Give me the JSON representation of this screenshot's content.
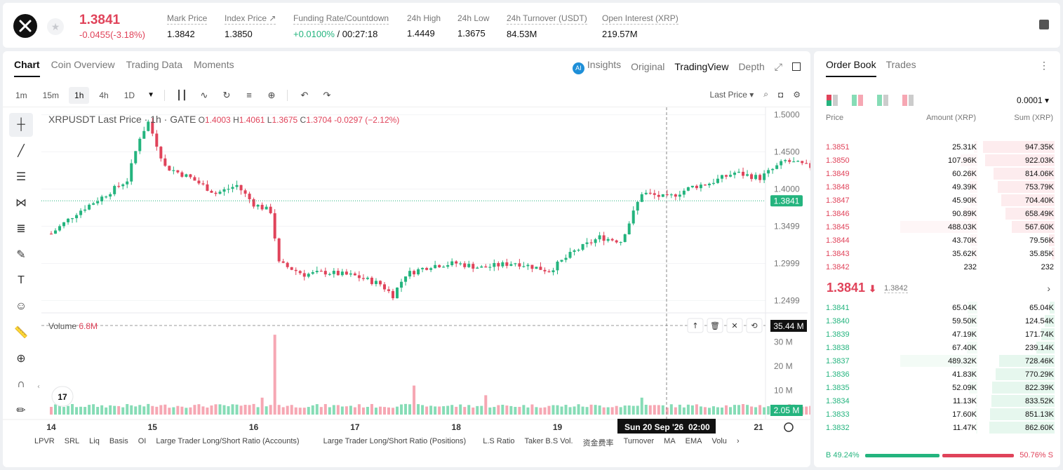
{
  "header": {
    "price": "1.3841",
    "change": "-0.0455(-3.18%)",
    "stats": [
      {
        "label": "Mark Price",
        "value": "1.3842"
      },
      {
        "label": "Index Price ↗",
        "value": "1.3850"
      },
      {
        "label": "Funding Rate/Countdown",
        "value_green": "+0.0100%",
        "value": "/ 00:27:18"
      },
      {
        "label": "24h High",
        "value": "1.4449"
      },
      {
        "label": "24h Low",
        "value": "1.3675"
      },
      {
        "label": "24h Turnover (USDT)",
        "value": "84.53M"
      },
      {
        "label": "Open Interest (XRP)",
        "value": "219.57M"
      }
    ]
  },
  "chart_tabs": [
    "Chart",
    "Coin Overview",
    "Trading Data",
    "Moments"
  ],
  "view_tabs": {
    "insights": "Insights",
    "original": "Original",
    "tradingview": "TradingView",
    "depth": "Depth"
  },
  "timeframes": [
    "1m",
    "15m",
    "1h",
    "4h",
    "1D"
  ],
  "toolbar": {
    "last_price": "Last Price ▾"
  },
  "legend": {
    "symbol": "XRPUSDT Last Price · 1h · GATE",
    "o_label": "O",
    "o": "1.4003",
    "h_label": "H",
    "h": "1.4061",
    "l_label": "L",
    "l": "1.3675",
    "c_label": "C",
    "c": "1.3704",
    "change": "-0.0297 (−2.12%)"
  },
  "volume_legend": {
    "label": "Volume",
    "value": "6.8M"
  },
  "price_axis": [
    "1.5000",
    "1.4500",
    "1.4000",
    "1.3499",
    "1.2999",
    "1.2499"
  ],
  "price_marker": "1.3841",
  "volume_axis": [
    "30 M",
    "20 M",
    "10 M"
  ],
  "volume_marker": "35.44 M",
  "volume_marker_low": "2.05 M",
  "date_axis": [
    "14",
    "15",
    "16",
    "17",
    "18",
    "19",
    "21"
  ],
  "crosshair_date": "Sun 20 Sep '26",
  "crosshair_time": "02:00",
  "indicators": [
    "LPVR",
    "SRL",
    "Liq",
    "Basis",
    "OI",
    "Large Trader Long/Short Ratio (Accounts)",
    "Large Trader Long/Short Ratio (Positions)",
    "L.S Ratio",
    "Taker B.S Vol.",
    "资金费率",
    "Turnover",
    "MA",
    "EMA",
    "Volu"
  ],
  "chart_data": {
    "type": "candlestick",
    "series": [
      {
        "name": "XRPUSDT"
      }
    ],
    "x_labels": [
      "14",
      "15",
      "16",
      "17",
      "18",
      "19",
      "20",
      "21"
    ],
    "ylim": [
      1.2399,
      1.51
    ],
    "volume_ylim": [
      0,
      40
    ],
    "candles_per_day": 24,
    "keypoints": [
      [
        0,
        1.34
      ],
      [
        6,
        1.368
      ],
      [
        12,
        1.389
      ],
      [
        18,
        1.412
      ],
      [
        21,
        1.47
      ],
      [
        23,
        1.49
      ],
      [
        27,
        1.43
      ],
      [
        33,
        1.415
      ],
      [
        39,
        1.394
      ],
      [
        44,
        1.405
      ],
      [
        48,
        1.38
      ],
      [
        52,
        1.37
      ],
      [
        54,
        1.3
      ],
      [
        60,
        1.285
      ],
      [
        65,
        1.288
      ],
      [
        72,
        1.283
      ],
      [
        78,
        1.272
      ],
      [
        81,
        1.257
      ],
      [
        84,
        1.285
      ],
      [
        90,
        1.297
      ],
      [
        96,
        1.3
      ],
      [
        102,
        1.294
      ],
      [
        110,
        1.301
      ],
      [
        118,
        1.29
      ],
      [
        124,
        1.316
      ],
      [
        130,
        1.335
      ],
      [
        135,
        1.33
      ],
      [
        137,
        1.355
      ],
      [
        140,
        1.395
      ],
      [
        146,
        1.388
      ],
      [
        152,
        1.403
      ],
      [
        156,
        1.408
      ],
      [
        162,
        1.422
      ],
      [
        168,
        1.415
      ],
      [
        174,
        1.438
      ],
      [
        180,
        1.43
      ],
      [
        185,
        1.425
      ],
      [
        188,
        1.395
      ],
      [
        190,
        1.38
      ],
      [
        193,
        1.382
      ],
      [
        198,
        1.383
      ],
      [
        201,
        1.384
      ]
    ],
    "volume_spikes": [
      {
        "i": 53,
        "v": 33
      },
      {
        "i": 50,
        "v": 7
      },
      {
        "i": 54,
        "v": 4
      },
      {
        "i": 86,
        "v": 12
      },
      {
        "i": 103,
        "v": 8
      },
      {
        "i": 140,
        "v": 7
      },
      {
        "i": 189,
        "v": 5
      }
    ],
    "volume_base": 2.8
  },
  "orderbook": {
    "tabs": [
      "Order Book",
      "Trades"
    ],
    "precision": "0.0001 ▾",
    "headers": {
      "price": "Price",
      "amount": "Amount (XRP)",
      "sum": "Sum (XRP)"
    },
    "asks": [
      {
        "price": "1.3851",
        "amount": "25.31K",
        "sum": "947.35K",
        "amt_pct": 0.05,
        "sum_pct": 0.97
      },
      {
        "price": "1.3850",
        "amount": "107.96K",
        "sum": "922.03K",
        "amt_pct": 0.22,
        "sum_pct": 0.94
      },
      {
        "price": "1.3849",
        "amount": "60.26K",
        "sum": "814.06K",
        "amt_pct": 0.12,
        "sum_pct": 0.83
      },
      {
        "price": "1.3848",
        "amount": "49.39K",
        "sum": "753.79K",
        "amt_pct": 0.1,
        "sum_pct": 0.77
      },
      {
        "price": "1.3847",
        "amount": "45.90K",
        "sum": "704.40K",
        "amt_pct": 0.09,
        "sum_pct": 0.72
      },
      {
        "price": "1.3846",
        "amount": "90.89K",
        "sum": "658.49K",
        "amt_pct": 0.18,
        "sum_pct": 0.67
      },
      {
        "price": "1.3845",
        "amount": "488.03K",
        "sum": "567.60K",
        "amt_pct": 1.0,
        "sum_pct": 0.58
      },
      {
        "price": "1.3844",
        "amount": "43.70K",
        "sum": "79.56K",
        "amt_pct": 0.09,
        "sum_pct": 0.08
      },
      {
        "price": "1.3843",
        "amount": "35.62K",
        "sum": "35.85K",
        "amt_pct": 0.07,
        "sum_pct": 0.04
      },
      {
        "price": "1.3842",
        "amount": "232",
        "sum": "232",
        "amt_pct": 0.0,
        "sum_pct": 0.0
      }
    ],
    "mid_price": "1.3841",
    "mid_sub": "1.3842",
    "bids": [
      {
        "price": "1.3841",
        "amount": "65.04K",
        "sum": "65.04K",
        "amt_pct": 0.13,
        "sum_pct": 0.07
      },
      {
        "price": "1.3840",
        "amount": "59.50K",
        "sum": "124.54K",
        "amt_pct": 0.12,
        "sum_pct": 0.13
      },
      {
        "price": "1.3839",
        "amount": "47.19K",
        "sum": "171.74K",
        "amt_pct": 0.1,
        "sum_pct": 0.18
      },
      {
        "price": "1.3838",
        "amount": "67.40K",
        "sum": "239.14K",
        "amt_pct": 0.14,
        "sum_pct": 0.25
      },
      {
        "price": "1.3837",
        "amount": "489.32K",
        "sum": "728.46K",
        "amt_pct": 1.0,
        "sum_pct": 0.75
      },
      {
        "price": "1.3836",
        "amount": "41.83K",
        "sum": "770.29K",
        "amt_pct": 0.09,
        "sum_pct": 0.8
      },
      {
        "price": "1.3835",
        "amount": "52.09K",
        "sum": "822.39K",
        "amt_pct": 0.11,
        "sum_pct": 0.85
      },
      {
        "price": "1.3834",
        "amount": "11.13K",
        "sum": "833.52K",
        "amt_pct": 0.02,
        "sum_pct": 0.86
      },
      {
        "price": "1.3833",
        "amount": "17.60K",
        "sum": "851.13K",
        "amt_pct": 0.04,
        "sum_pct": 0.88
      },
      {
        "price": "1.3832",
        "amount": "11.47K",
        "sum": "862.60K",
        "amt_pct": 0.02,
        "sum_pct": 0.89
      }
    ],
    "buy_ratio": "49.24%",
    "sell_ratio": "50.76%",
    "buy_label": "B",
    "sell_label": "S"
  },
  "colors": {
    "up": "#24b47e",
    "down": "#e0435a",
    "up_soft": "#86dcb6",
    "down_soft": "#f6a7b3"
  }
}
